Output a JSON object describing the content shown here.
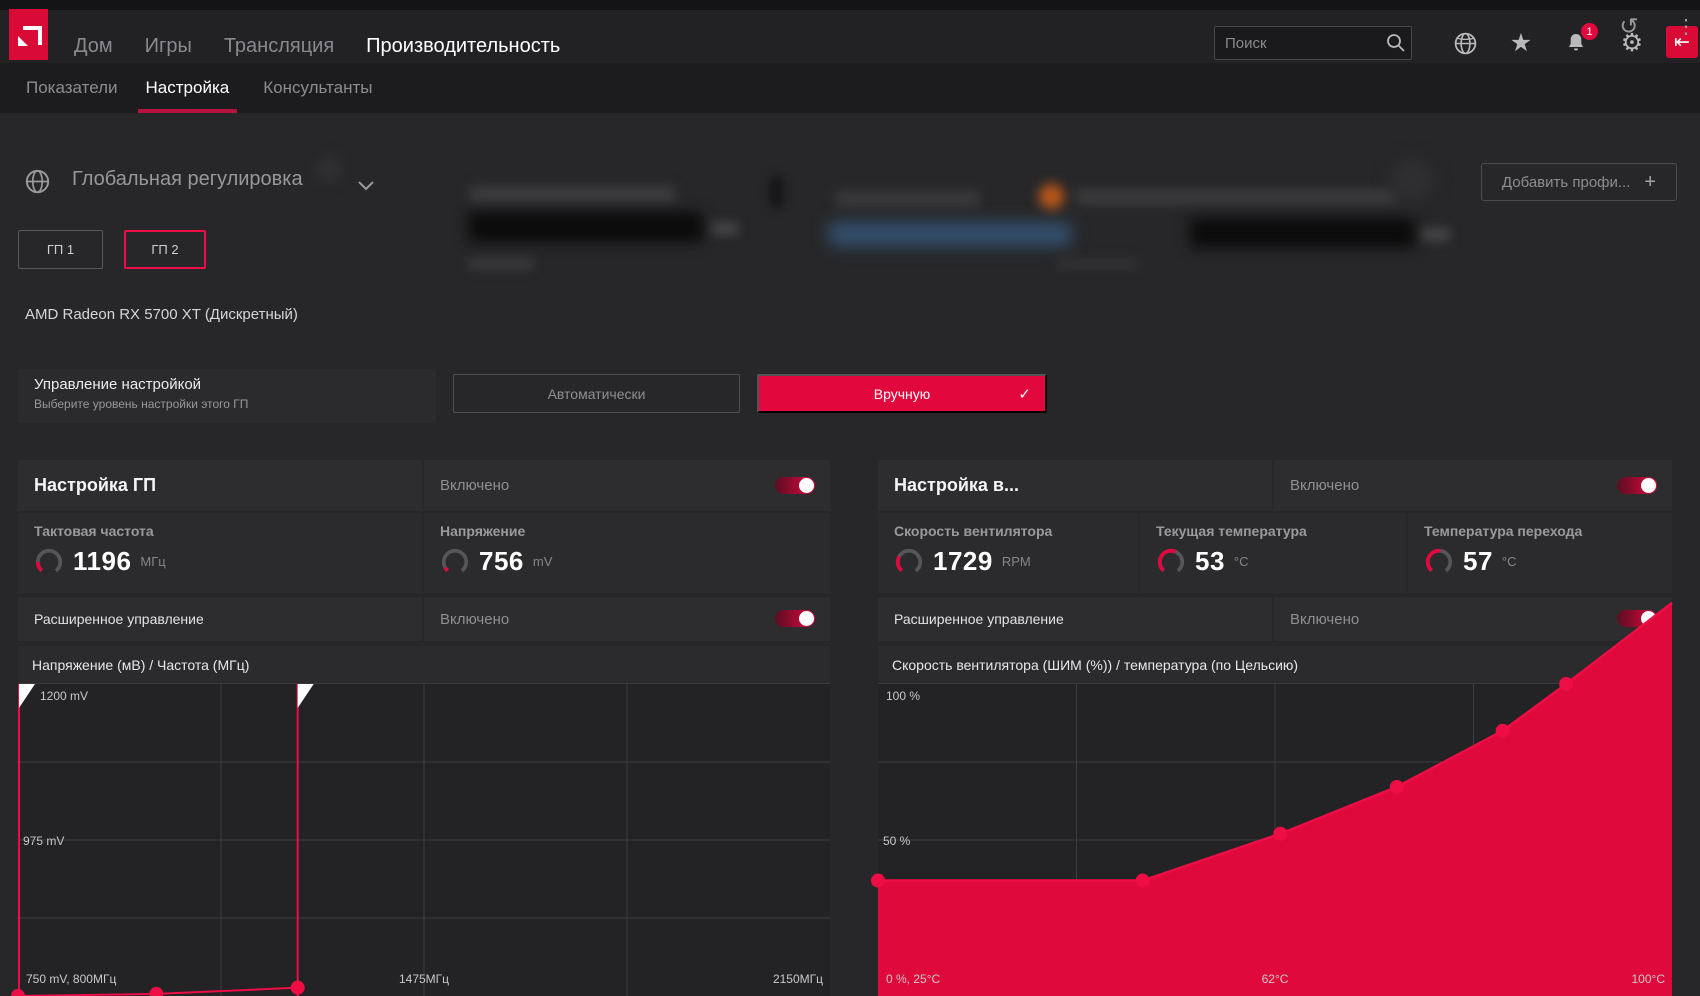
{
  "accent_color": "#e2083e",
  "topbar": {
    "nav": [
      {
        "label": "Дом"
      },
      {
        "label": "Игры"
      },
      {
        "label": "Трансляция"
      },
      {
        "label": "Производительность",
        "active": true
      }
    ],
    "search_placeholder": "Поиск",
    "notification_count": "1"
  },
  "subnav": {
    "items": [
      {
        "label": "Показатели"
      },
      {
        "label": "Настройка",
        "active": true
      },
      {
        "label": "Консультанты"
      }
    ]
  },
  "profile_bar": {
    "selector_label": "Глобальная регулировка",
    "add_profile_label": "Добавить профи...",
    "plus": "+"
  },
  "gpu_tabs": {
    "tab1": "ГП 1",
    "tab2": "ГП 2"
  },
  "gpu_name": "AMD Radeon RX 5700 XT (Дискретный)",
  "tuning_control": {
    "title": "Управление настройкой",
    "subtitle": "Выберите уровень настройки этого ГП",
    "auto_label": "Автоматически",
    "manual_label": "Вручную",
    "check": "✓"
  },
  "gpu_panel": {
    "title": "Настройка ГП",
    "enabled_label": "Включено",
    "metrics": [
      {
        "label": "Тактовая частота",
        "value": "1196",
        "unit": "МГц",
        "gauge": 0.18
      },
      {
        "label": "Напряжение",
        "value": "756",
        "unit": "mV",
        "gauge": 0.07
      }
    ],
    "advanced_label": "Расширенное управление",
    "advanced_enabled_label": "Включено",
    "chart_title": "Напряжение (мВ) / Частота (МГц)"
  },
  "fan_panel": {
    "title": "Настройка в...",
    "enabled_label": "Включено",
    "metrics": [
      {
        "label": "Скорость вентилятора",
        "value": "1729",
        "unit": "RPM",
        "gauge": 0.28
      },
      {
        "label": "Текущая температура",
        "value": "53",
        "unit": "°C",
        "gauge": 0.58
      },
      {
        "label": "Температура перехода",
        "value": "57",
        "unit": "°C",
        "gauge": 0.52
      }
    ],
    "advanced_label": "Расширенное управление",
    "advanced_enabled_label": "Включено",
    "chart_title": "Скорость вентилятора (ШИМ (%)) / температура (по Цельсию)"
  },
  "icons": {
    "reset": "↺",
    "kebab": "⋮",
    "gear": "⚙",
    "star": "★",
    "tray": "⇤"
  },
  "chart_data": [
    {
      "id": "voltage_frequency_curve",
      "type": "line",
      "title": "Напряжение (мВ) / Частота (МГц)",
      "xlabel": "Частота (МГц)",
      "ylabel": "Напряжение (мВ)",
      "xlim": [
        800,
        2150
      ],
      "ylim": [
        750,
        1200
      ],
      "x_ticks": [
        "750 mV, 800МГц",
        "1475МГц",
        "2150МГц"
      ],
      "y_ticks": [
        "1200 mV",
        "975 mV"
      ],
      "points": [
        [
          800,
          750
        ],
        [
          1030,
          753
        ],
        [
          1265,
          762
        ]
      ],
      "boundary_lines_x": [
        800,
        1265
      ],
      "grid": true,
      "legend": "none"
    },
    {
      "id": "fan_speed_curve",
      "type": "area",
      "title": "Скорость вентилятора (ШИМ (%)) / температура (по Цельсию)",
      "xlabel": "температура (по Цельсию)",
      "ylabel": "ШИМ (%)",
      "xlim": [
        25,
        100
      ],
      "ylim": [
        0,
        100
      ],
      "x_ticks": [
        "0 %, 25°C",
        "62°C",
        "100°C"
      ],
      "y_ticks": [
        "100 %",
        "50 %"
      ],
      "points": [
        [
          25,
          37
        ],
        [
          50,
          37
        ],
        [
          63,
          52
        ],
        [
          74,
          67
        ],
        [
          84,
          85
        ],
        [
          90,
          100
        ]
      ],
      "line_end": [
        100,
        126
      ],
      "grid": true,
      "legend": "none"
    }
  ]
}
